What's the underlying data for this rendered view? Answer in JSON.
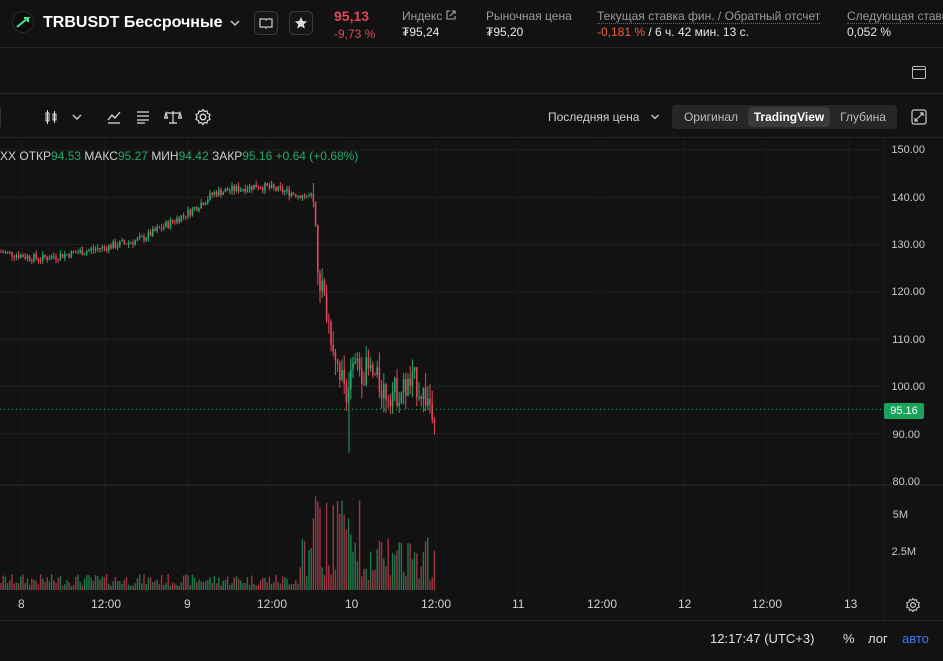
{
  "header": {
    "symbol": "TRBUSDT Бессрочные",
    "price": "95,13",
    "change": "-9,73 %",
    "stats": [
      {
        "label": "Индекс",
        "value": "₮95,24"
      },
      {
        "label": "Рыночная цена",
        "value": "₮95,20"
      },
      {
        "label": "Текущая ставка фин. / Обратный отсчет",
        "value_neg": "-0,181 %",
        "value_rest": " / 6 ч. 42 мин. 13 с."
      },
      {
        "label": "Следующая ставка",
        "value": "0,052 %"
      }
    ],
    "colors": {
      "negative": "#e2475b",
      "positive": "#22ab6a",
      "accent": "#3a7bf5"
    }
  },
  "toolbar": {
    "price_source": "Последняя цена",
    "views": [
      "Оригинал",
      "TradingView",
      "Глубина"
    ],
    "active_view": "TradingView",
    "icons": [
      "candles-icon",
      "chevron-down-icon",
      "indicators-icon",
      "list-icon",
      "scales-icon",
      "settings-icon",
      "expand-icon"
    ]
  },
  "ohlc": {
    "prefix": "XX",
    "open_label": "ОТКР",
    "open": "94.53",
    "high_label": "МАКС",
    "high": "95.27",
    "low_label": "МИН",
    "low": "94.42",
    "close_label": "ЗАКР",
    "close": "95.16",
    "change": "+0.64 (+0.68%)"
  },
  "axis": {
    "price_ticks": [
      "150.00",
      "140.00",
      "130.00",
      "120.00",
      "110.00",
      "100.00",
      "90.00",
      "80.00"
    ],
    "volume_ticks": [
      "5M",
      "2.5M"
    ],
    "current_price": "95.16",
    "time_ticks": [
      "8",
      "12:00",
      "9",
      "12:00",
      "10",
      "12:00",
      "11",
      "12:00",
      "12",
      "12:00",
      "13"
    ]
  },
  "footer": {
    "clock": "12:17:47 (UTC+3)",
    "percent": "%",
    "log": "лог",
    "auto": "авто"
  }
}
